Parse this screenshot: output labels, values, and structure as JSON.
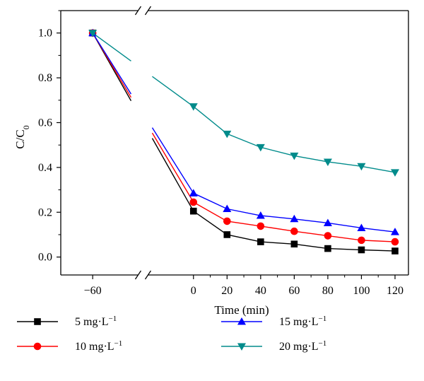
{
  "chart_data": {
    "type": "line",
    "xlabel": "Time (min)",
    "ylabel_main": "C/C",
    "ylabel_sub": "0",
    "x": [
      -60,
      0,
      20,
      40,
      60,
      80,
      100,
      120
    ],
    "xticks": [
      -60,
      0,
      20,
      40,
      60,
      80,
      100,
      120
    ],
    "xtick_labels": [
      "−60",
      "0",
      "20",
      "40",
      "60",
      "80",
      "100",
      "120"
    ],
    "yticks": [
      0.0,
      0.2,
      0.4,
      0.6,
      0.8,
      1.0
    ],
    "ytick_labels": [
      "0.0",
      "0.2",
      "0.4",
      "0.6",
      "0.8",
      "1.0"
    ],
    "ylim": [
      -0.08,
      1.1
    ],
    "xlim": [
      -79,
      128
    ],
    "axis_break": "between -60 and 0",
    "grid": false,
    "legend_position": "bottom",
    "series": [
      {
        "name": "5 mg·L",
        "name_sup": "−1",
        "color": "#000000",
        "marker": "square",
        "values": [
          1.0,
          0.205,
          0.1,
          0.068,
          0.058,
          0.038,
          0.032,
          0.027
        ]
      },
      {
        "name": "10 mg·L",
        "name_sup": "−1",
        "color": "#ff0000",
        "marker": "circle",
        "values": [
          1.0,
          0.245,
          0.16,
          0.138,
          0.115,
          0.095,
          0.075,
          0.068
        ]
      },
      {
        "name": "15 mg·L",
        "name_sup": "−1",
        "color": "#0000ff",
        "marker": "triangle-up",
        "values": [
          1.0,
          0.285,
          0.215,
          0.185,
          0.17,
          0.152,
          0.13,
          0.112
        ]
      },
      {
        "name": "20 mg·L",
        "name_sup": "−1",
        "color": "#008b8b",
        "marker": "triangle-down",
        "values": [
          1.0,
          0.672,
          0.55,
          0.49,
          0.452,
          0.425,
          0.405,
          0.378
        ]
      }
    ]
  }
}
